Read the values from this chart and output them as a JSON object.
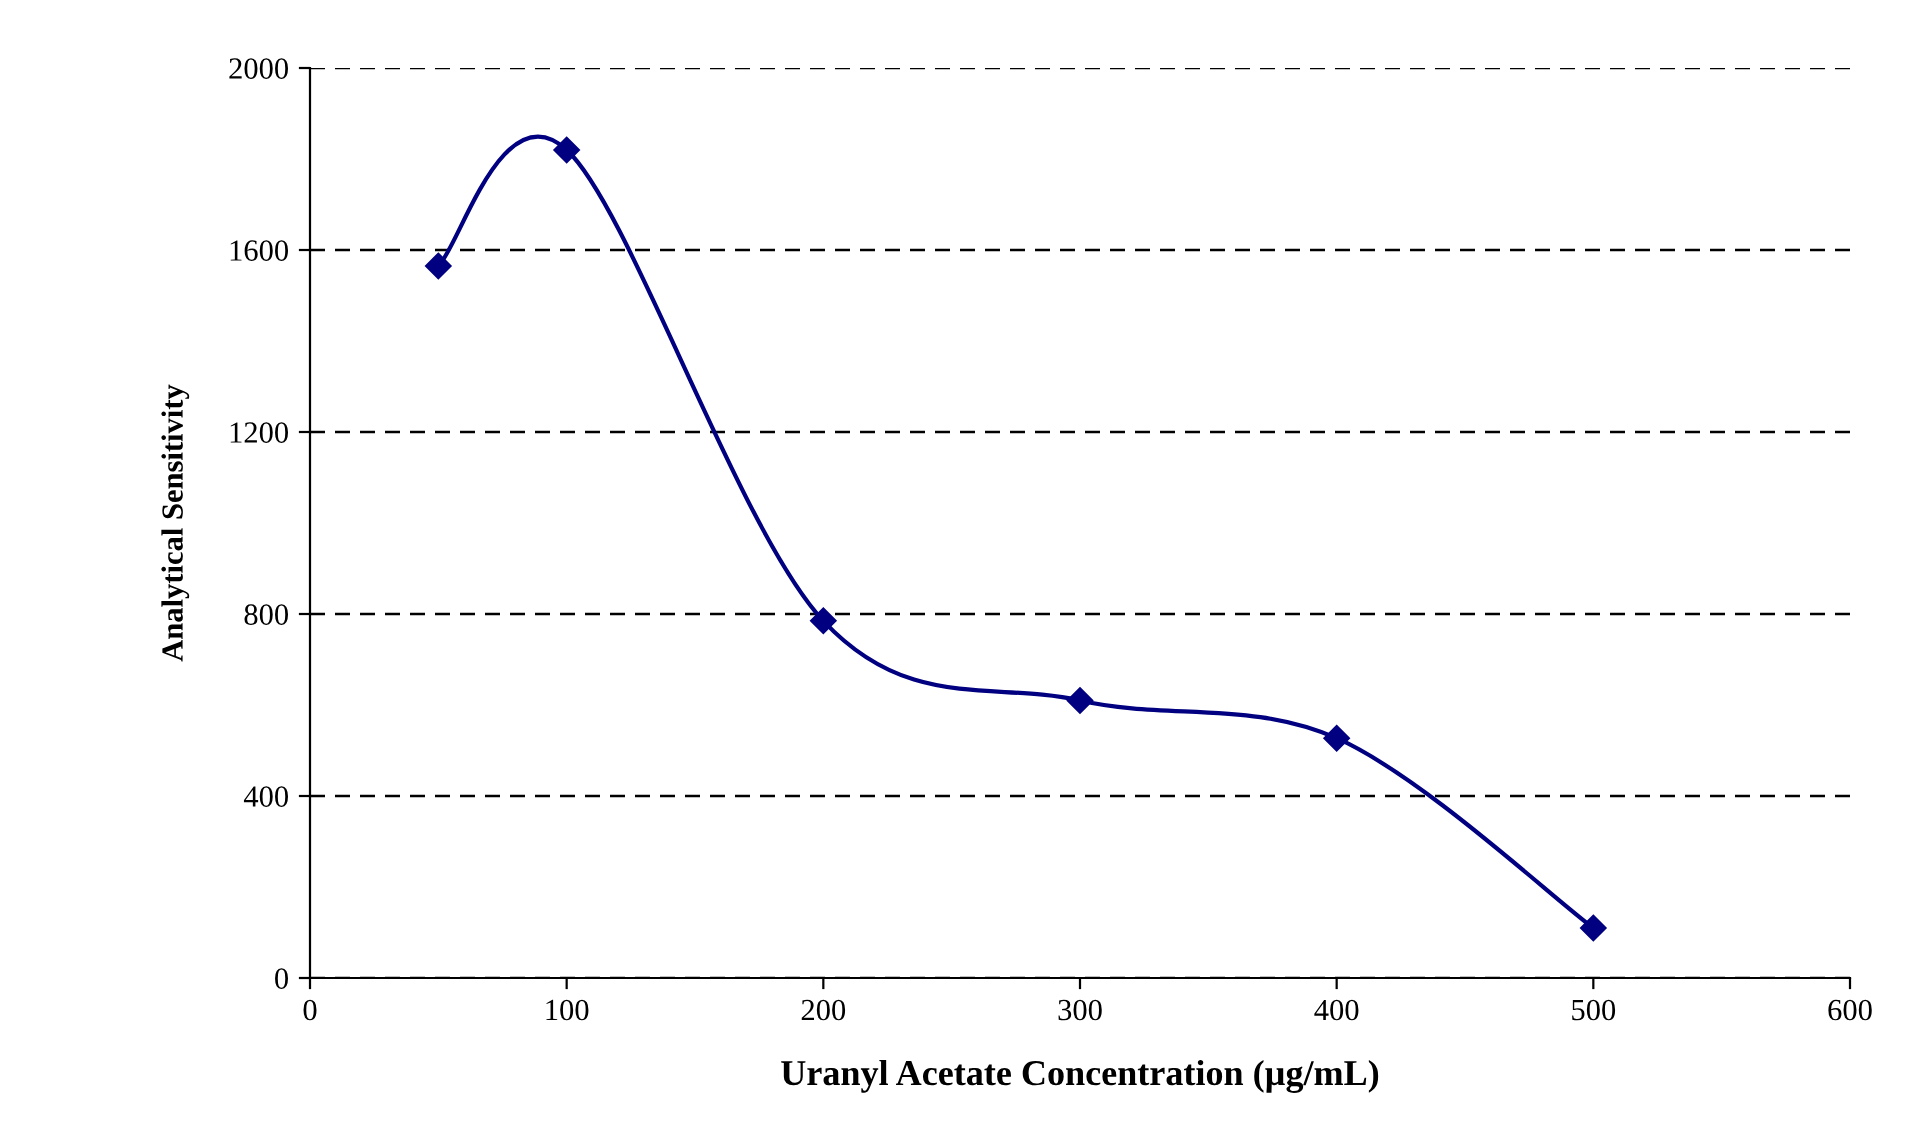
{
  "chart_data": {
    "type": "line",
    "xlabel": "Uranyl Acetate Concentration (µg/mL)",
    "ylabel": "Analytical Sensitivity",
    "x": [
      50,
      100,
      200,
      300,
      400,
      500
    ],
    "series": [
      {
        "color": "#000080",
        "values": [
          1565,
          1820,
          785,
          610,
          527,
          110
        ]
      }
    ],
    "xlim": [
      0,
      600
    ],
    "xticks": [
      0,
      100,
      200,
      300,
      400,
      500,
      600
    ],
    "ylim": [
      0,
      2000
    ],
    "yticks": [
      0,
      400,
      800,
      1200,
      1600,
      2000
    ],
    "grid": "y",
    "marker": "diamond",
    "line_style": "solid"
  }
}
